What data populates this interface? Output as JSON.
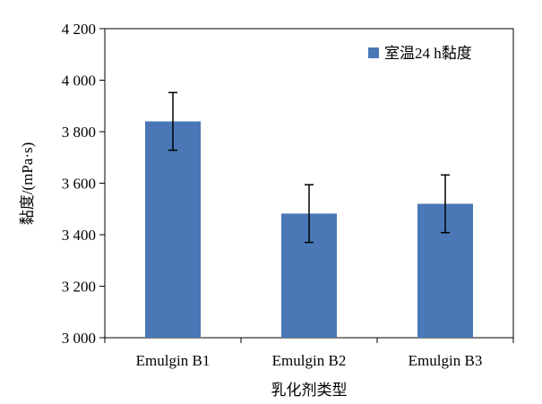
{
  "chart_data": {
    "type": "bar",
    "categories": [
      "Emulgin B1",
      "Emulgin B2",
      "Emulgin B3"
    ],
    "series": [
      {
        "name": "室温24 h黏度",
        "values": [
          3840,
          3482,
          3520
        ],
        "errors": [
          112,
          112,
          112
        ],
        "color": "#4a78b6"
      }
    ],
    "xlabel": "乳化剂类型",
    "ylabel": "黏度/(mPa·s)",
    "ylim": [
      3000,
      4200
    ],
    "yticks": [
      3000,
      3200,
      3400,
      3600,
      3800,
      4000,
      4200
    ],
    "ytick_labels": [
      "3 000",
      "3 200",
      "3 400",
      "3 600",
      "3 800",
      "4 000",
      "4 200"
    ],
    "grid": false,
    "legend_position": "top-right"
  }
}
